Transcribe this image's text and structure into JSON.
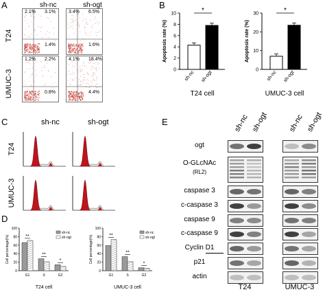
{
  "panels": {
    "A": "A",
    "B": "B",
    "C": "C",
    "D": "D",
    "E": "E"
  },
  "panel_a": {
    "groups": [
      "sh-nc",
      "sh-ogt"
    ],
    "rows": [
      "T24",
      "UMUC-3"
    ],
    "quadrants": [
      [
        [
          "2.1%",
          "3.1%",
          "1.4%"
        ],
        [
          "3.4%",
          "6.5%",
          "1.6%"
        ]
      ],
      [
        [
          "1.2%",
          "2.2%",
          "0.8%"
        ],
        [
          "4.1%",
          "18.4%",
          "4.4%"
        ]
      ]
    ]
  },
  "panel_b": {
    "ylabel": "Apoptosis rate (%)",
    "sig": "*",
    "charts": [
      {
        "xlabel": "T24 cell",
        "categories": [
          "sh-nc",
          "sh-ogt"
        ],
        "ticks": [
          "0",
          "2",
          "4",
          "6",
          "8",
          "10"
        ]
      },
      {
        "xlabel": "UMUC-3 cell",
        "categories": [
          "sh-nc",
          "sh-ogt"
        ],
        "ticks": [
          "0",
          "10",
          "20",
          "30"
        ]
      }
    ]
  },
  "panel_c": {
    "groups": [
      "sh-nc",
      "sh-ogt"
    ],
    "rows": [
      "T24",
      "UMUC-3"
    ]
  },
  "panel_d": {
    "ylabel": "Cell percentage(%)",
    "legend": [
      "sh-nc",
      "sh-ogt"
    ],
    "sig": [
      "**",
      "**",
      "*"
    ],
    "charts": [
      {
        "xlabel": "T24 cell",
        "categories": [
          "G1",
          "S",
          "G2"
        ],
        "ticks": [
          "0",
          "20",
          "40",
          "60",
          "80",
          "100"
        ]
      },
      {
        "xlabel": "UMUC-3 cell",
        "categories": [
          "G1",
          "S",
          "G2"
        ],
        "ticks": [
          "0",
          "20",
          "40",
          "60",
          "80",
          "100"
        ]
      }
    ]
  },
  "panel_e": {
    "columns": [
      "sh-nc",
      "sh-ogt",
      "sh-nc",
      "sh-ogt"
    ],
    "rows": [
      "ogt",
      "O-GLcNAc",
      "(RL2)",
      "caspase 3",
      "c-caspase 3",
      "caspase 9",
      "c-caspase 9",
      "Cyclin D1",
      "p21",
      "actin"
    ],
    "cells": [
      "T24",
      "UMUC-3"
    ]
  },
  "chart_data": [
    {
      "type": "bar",
      "title": "",
      "xlabel": "T24 cell",
      "ylabel": "Apoptosis rate (%)",
      "categories": [
        "sh-nc",
        "sh-ogt"
      ],
      "values": [
        4.3,
        7.8
      ],
      "ylim": [
        0,
        10
      ]
    },
    {
      "type": "bar",
      "title": "",
      "xlabel": "UMUC-3 cell",
      "ylabel": "Apoptosis rate (%)",
      "categories": [
        "sh-nc",
        "sh-ogt"
      ],
      "values": [
        7,
        23.5
      ],
      "ylim": [
        0,
        30
      ]
    },
    {
      "type": "bar",
      "title": "",
      "xlabel": "T24 cell",
      "ylabel": "Cell percentage(%)",
      "categories": [
        "G1",
        "S",
        "G2"
      ],
      "series": [
        {
          "name": "sh-nc",
          "values": [
            66,
            28,
            14
          ]
        },
        {
          "name": "sh-ogt",
          "values": [
            71,
            21,
            10
          ]
        }
      ],
      "ylim": [
        0,
        100
      ]
    },
    {
      "type": "bar",
      "title": "",
      "xlabel": "UMUC-3 cell",
      "ylabel": "Cell percentage(%)",
      "categories": [
        "G1",
        "S",
        "G2"
      ],
      "series": [
        {
          "name": "sh-nc",
          "values": [
            59,
            33,
            7
          ]
        },
        {
          "name": "sh-ogt",
          "values": [
            73,
            21,
            6
          ]
        }
      ],
      "ylim": [
        0,
        100
      ]
    }
  ]
}
